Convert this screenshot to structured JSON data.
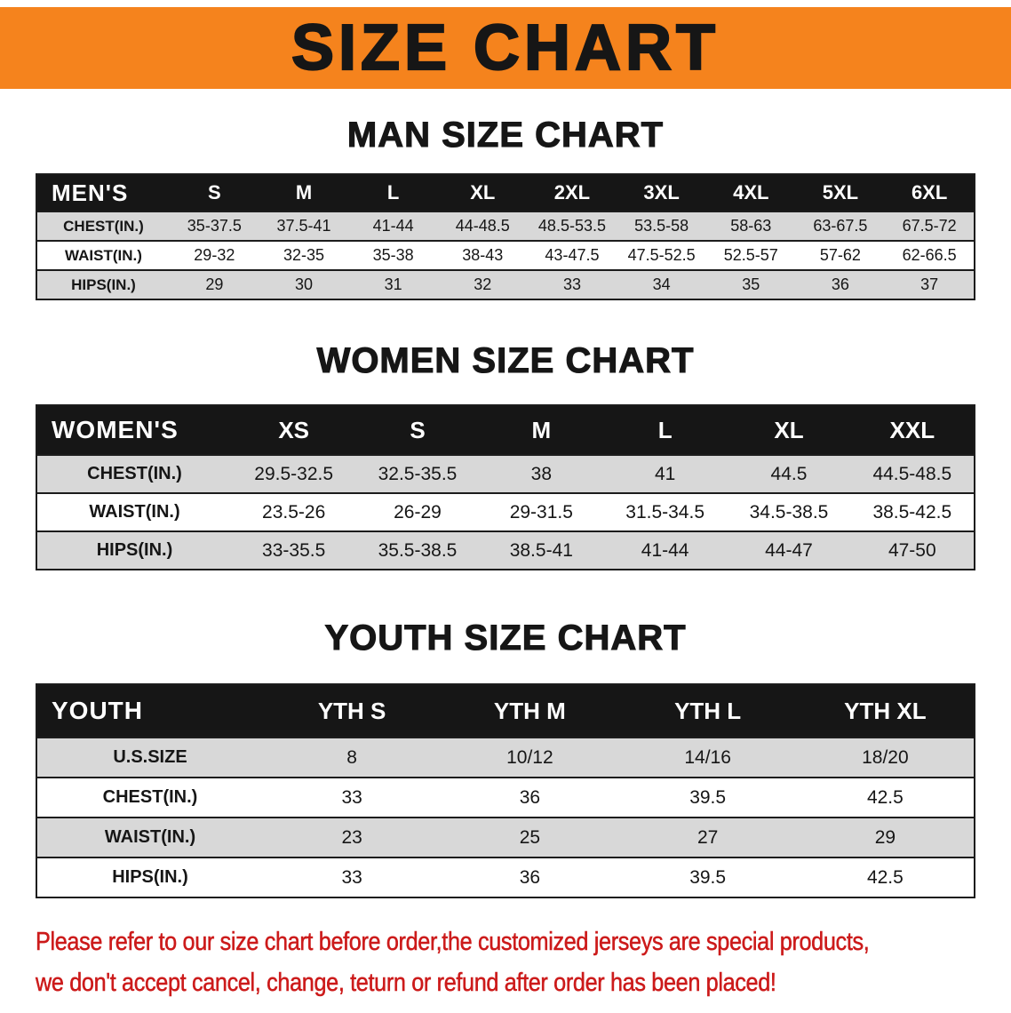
{
  "banner": {
    "title": "SIZE CHART"
  },
  "sections": [
    {
      "id": "men",
      "heading": "MAN SIZE CHART",
      "table": {
        "header": [
          "MEN'S",
          "S",
          "M",
          "L",
          "XL",
          "2XL",
          "3XL",
          "4XL",
          "5XL",
          "6XL"
        ],
        "rows": [
          [
            "CHEST(IN.)",
            "35-37.5",
            "37.5-41",
            "41-44",
            "44-48.5",
            "48.5-53.5",
            "53.5-58",
            "58-63",
            "63-67.5",
            "67.5-72"
          ],
          [
            "WAIST(IN.)",
            "29-32",
            "32-35",
            "35-38",
            "38-43",
            "43-47.5",
            "47.5-52.5",
            "52.5-57",
            "57-62",
            "62-66.5"
          ],
          [
            "HIPS(IN.)",
            "29",
            "30",
            "31",
            "32",
            "33",
            "34",
            "35",
            "36",
            "37"
          ]
        ]
      }
    },
    {
      "id": "women",
      "heading": "WOMEN SIZE CHART",
      "table": {
        "header": [
          "WOMEN'S",
          "XS",
          "S",
          "M",
          "L",
          "XL",
          "XXL"
        ],
        "rows": [
          [
            "CHEST(IN.)",
            "29.5-32.5",
            "32.5-35.5",
            "38",
            "41",
            "44.5",
            "44.5-48.5"
          ],
          [
            "WAIST(IN.)",
            "23.5-26",
            "26-29",
            "29-31.5",
            "31.5-34.5",
            "34.5-38.5",
            "38.5-42.5"
          ],
          [
            "HIPS(IN.)",
            "33-35.5",
            "35.5-38.5",
            "38.5-41",
            "41-44",
            "44-47",
            "47-50"
          ]
        ]
      }
    },
    {
      "id": "youth",
      "heading": "YOUTH SIZE CHART",
      "table": {
        "header": [
          "YOUTH",
          "YTH S",
          "YTH M",
          "YTH L",
          "YTH XL"
        ],
        "rows": [
          [
            "U.S.SIZE",
            "8",
            "10/12",
            "14/16",
            "18/20"
          ],
          [
            "CHEST(IN.)",
            "33",
            "36",
            "39.5",
            "42.5"
          ],
          [
            "WAIST(IN.)",
            "23",
            "25",
            "27",
            "29"
          ],
          [
            "HIPS(IN.)",
            "33",
            "36",
            "39.5",
            "42.5"
          ]
        ]
      }
    }
  ],
  "disclaimer": {
    "lines": [
      "Please refer to our size chart before order,the customized jerseys are special products,",
      "we don't accept cancel, change, teturn or refund after order has been placed!"
    ]
  },
  "colors": {
    "banner_orange": "#f5831d",
    "table_header_black": "#161616",
    "row_stripe_gray": "#d8d8d8",
    "disclaimer_red": "#cc1a1a"
  }
}
